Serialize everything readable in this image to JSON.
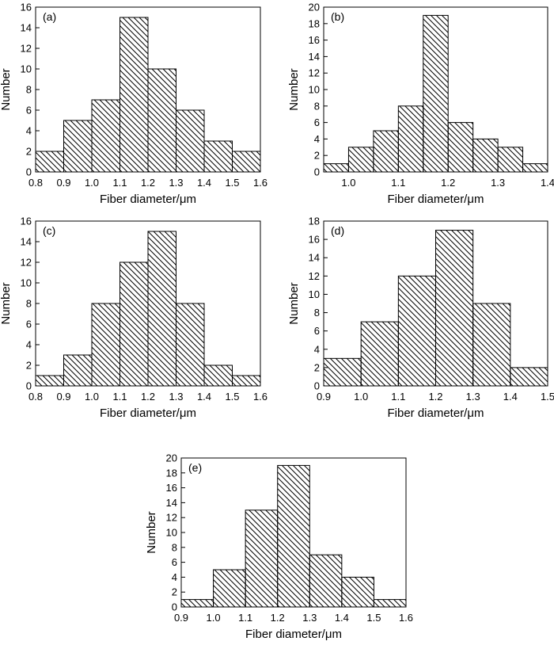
{
  "figure": {
    "panels": [
      {
        "panel_label": "(a)",
        "xlabel": "Fiber diameter/μm",
        "ylabel": "Number"
      },
      {
        "panel_label": "(b)",
        "xlabel": "Fiber diameter/μm",
        "ylabel": "Number"
      },
      {
        "panel_label": "(c)",
        "xlabel": "Fiber diameter/μm",
        "ylabel": "Number"
      },
      {
        "panel_label": "(d)",
        "xlabel": "Fiber diameter/μm",
        "ylabel": "Number"
      },
      {
        "panel_label": "(e)",
        "xlabel": "Fiber diameter/μm",
        "ylabel": "Number"
      }
    ]
  },
  "chart_data": [
    {
      "type": "bar",
      "title": "(a)",
      "xlabel": "Fiber diameter/μm",
      "ylabel": "Number",
      "bin_edges": [
        0.8,
        0.9,
        1.0,
        1.1,
        1.2,
        1.3,
        1.4,
        1.5,
        1.6
      ],
      "values": [
        2,
        5,
        7,
        15,
        10,
        6,
        3,
        2
      ],
      "xlim": [
        0.8,
        1.6
      ],
      "ylim": [
        0,
        16
      ],
      "xticks": [
        "0.8",
        "0.9",
        "1.0",
        "1.1",
        "1.2",
        "1.3",
        "1.4",
        "1.5",
        "1.6"
      ],
      "yticks": [
        "0",
        "2",
        "4",
        "6",
        "8",
        "10",
        "12",
        "14",
        "16"
      ],
      "grid": false,
      "fill": "diagonal hatch"
    },
    {
      "type": "bar",
      "title": "(b)",
      "xlabel": "Fiber diameter/μm",
      "ylabel": "Number",
      "bin_edges": [
        0.95,
        1.0,
        1.05,
        1.1,
        1.15,
        1.2,
        1.25,
        1.3,
        1.35,
        1.4
      ],
      "values": [
        1,
        3,
        5,
        8,
        19,
        6,
        4,
        3,
        1
      ],
      "xlim": [
        0.95,
        1.4
      ],
      "ylim": [
        0,
        20
      ],
      "xticks": [
        "1.0",
        "1.1",
        "1.2",
        "1.3",
        "1.4"
      ],
      "yticks": [
        "0",
        "2",
        "4",
        "6",
        "8",
        "10",
        "12",
        "14",
        "16",
        "18",
        "20"
      ],
      "grid": false,
      "fill": "diagonal hatch"
    },
    {
      "type": "bar",
      "title": "(c)",
      "xlabel": "Fiber diameter/μm",
      "ylabel": "Number",
      "bin_edges": [
        0.8,
        0.9,
        1.0,
        1.1,
        1.2,
        1.3,
        1.4,
        1.5,
        1.6
      ],
      "values": [
        1,
        3,
        8,
        12,
        15,
        8,
        2,
        1
      ],
      "xlim": [
        0.8,
        1.6
      ],
      "ylim": [
        0,
        16
      ],
      "xticks": [
        "0.8",
        "0.9",
        "1.0",
        "1.1",
        "1.2",
        "1.3",
        "1.4",
        "1.5",
        "1.6"
      ],
      "yticks": [
        "0",
        "2",
        "4",
        "6",
        "8",
        "10",
        "12",
        "14",
        "16"
      ],
      "grid": false,
      "fill": "diagonal hatch"
    },
    {
      "type": "bar",
      "title": "(d)",
      "xlabel": "Fiber diameter/μm",
      "ylabel": "Number",
      "bin_edges": [
        0.9,
        1.0,
        1.1,
        1.2,
        1.3,
        1.4,
        1.5
      ],
      "values": [
        3,
        7,
        12,
        17,
        9,
        2
      ],
      "xlim": [
        0.9,
        1.5
      ],
      "ylim": [
        0,
        18
      ],
      "xticks": [
        "0.9",
        "1.0",
        "1.1",
        "1.2",
        "1.3",
        "1.4",
        "1.5"
      ],
      "yticks": [
        "0",
        "2",
        "4",
        "6",
        "8",
        "10",
        "12",
        "14",
        "16",
        "18"
      ],
      "grid": false,
      "fill": "diagonal hatch"
    },
    {
      "type": "bar",
      "title": "(e)",
      "xlabel": "Fiber diameter/μm",
      "ylabel": "Number",
      "bin_edges": [
        0.9,
        1.0,
        1.1,
        1.2,
        1.3,
        1.4,
        1.5,
        1.6
      ],
      "values": [
        1,
        5,
        13,
        19,
        7,
        4,
        1
      ],
      "xlim": [
        0.9,
        1.6
      ],
      "ylim": [
        0,
        20
      ],
      "xticks": [
        "0.9",
        "1.0",
        "1.1",
        "1.2",
        "1.3",
        "1.4",
        "1.5",
        "1.6"
      ],
      "yticks": [
        "0",
        "2",
        "4",
        "6",
        "8",
        "10",
        "12",
        "14",
        "16",
        "18",
        "20"
      ],
      "grid": false,
      "fill": "diagonal hatch"
    }
  ]
}
